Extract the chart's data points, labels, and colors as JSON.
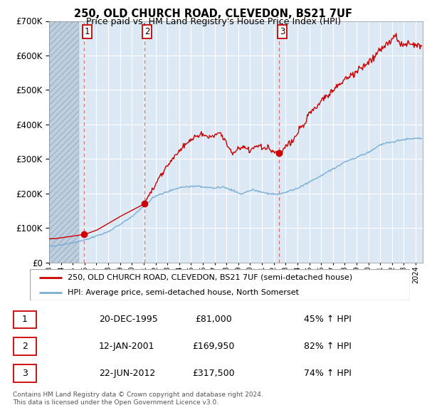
{
  "title": "250, OLD CHURCH ROAD, CLEVEDON, BS21 7UF",
  "subtitle": "Price paid vs. HM Land Registry's House Price Index (HPI)",
  "legend_line1": "250, OLD CHURCH ROAD, CLEVEDON, BS21 7UF (semi-detached house)",
  "legend_line2": "HPI: Average price, semi-detached house, North Somerset",
  "footnote1": "Contains HM Land Registry data © Crown copyright and database right 2024.",
  "footnote2": "This data is licensed under the Open Government Licence v3.0.",
  "transactions": [
    {
      "num": 1,
      "date": "20-DEC-1995",
      "price": 81000,
      "price_str": "£81,000",
      "pct": "45%",
      "dir": "↑",
      "x_year": 1995.97
    },
    {
      "num": 2,
      "date": "12-JAN-2001",
      "price": 169950,
      "price_str": "£169,950",
      "pct": "82%",
      "dir": "↑",
      "x_year": 2001.04
    },
    {
      "num": 3,
      "date": "22-JUN-2012",
      "price": 317500,
      "price_str": "£317,500",
      "pct": "74%",
      "dir": "↑",
      "x_year": 2012.47
    }
  ],
  "hpi_color": "#7aafd4",
  "price_color": "#cc0000",
  "dot_color": "#cc0000",
  "bg_color": "#dce9f5",
  "hatch_color": "#c0cfe0",
  "grid_color": "#ffffff",
  "dashed_color": "#e06060",
  "ylim": [
    0,
    700000
  ],
  "xlim_start": 1993.0,
  "xlim_end": 2024.6,
  "hatch_end": 1995.5
}
